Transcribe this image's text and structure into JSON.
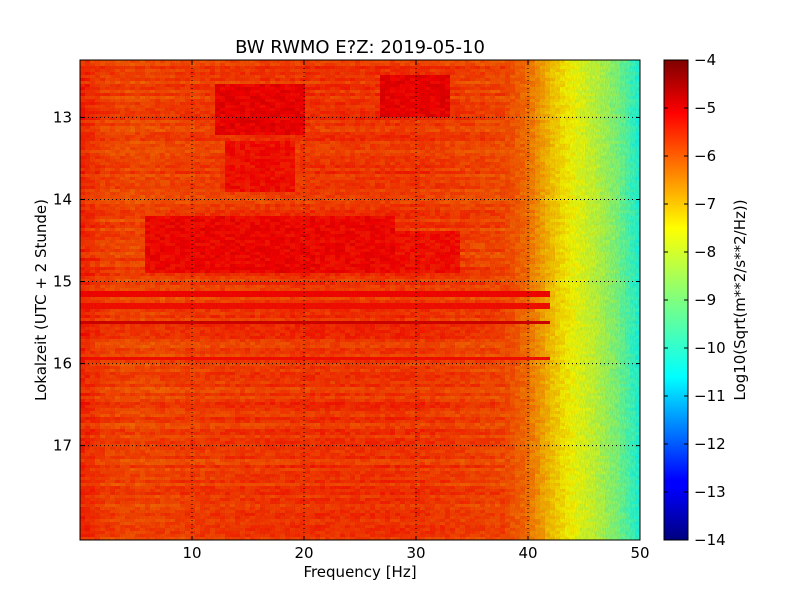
{
  "chart_data": {
    "type": "heatmap",
    "title": "BW RWMO E?Z: 2019-05-10",
    "xlabel": "Frequency [Hz]",
    "ylabel": "Lokalzeit (UTC + 2 Stunde)",
    "xlim": [
      0,
      50
    ],
    "ylim": [
      12.3,
      18.15
    ],
    "x_ticks": [
      10,
      20,
      30,
      40,
      50
    ],
    "x_tick_labels": [
      "10",
      "20",
      "30",
      "40",
      "50"
    ],
    "y_ticks": [
      13,
      14,
      15,
      16,
      17
    ],
    "y_tick_labels": [
      "13",
      "14",
      "15",
      "16",
      "17"
    ],
    "y_inverted": true,
    "grid": true,
    "colorbar": {
      "label": "Log10(Sqrt(m**2/s**2/Hz))",
      "range": [
        -14,
        -4
      ],
      "ticks": [
        -4,
        -5,
        -6,
        -7,
        -8,
        -9,
        -10,
        -11,
        -12,
        -13,
        -14
      ],
      "tick_labels": [
        "−4",
        "−5",
        "−6",
        "−7",
        "−8",
        "−9",
        "−10",
        "−11",
        "−12",
        "−13",
        "−14"
      ],
      "colormap": "jet"
    },
    "frequency_profile": {
      "frequency_hz": [
        0,
        2,
        5,
        10,
        20,
        30,
        38,
        40,
        42,
        44,
        46,
        48,
        50
      ],
      "value": [
        -5.6,
        -5.9,
        -6.0,
        -5.9,
        -5.8,
        -5.8,
        -6.0,
        -6.4,
        -7.2,
        -7.8,
        -8.3,
        -9.0,
        -10.0
      ]
    },
    "strong_bands": [
      {
        "time_start": 12.6,
        "time_end": 13.2,
        "freq_start": 12,
        "freq_end": 20,
        "value": -5.2
      },
      {
        "time_start": 12.5,
        "time_end": 13.0,
        "freq_start": 27,
        "freq_end": 33,
        "value": -5.2
      },
      {
        "time_start": 13.3,
        "time_end": 13.9,
        "freq_start": 13,
        "freq_end": 19,
        "value": -5.4
      },
      {
        "time_start": 14.2,
        "time_end": 14.9,
        "freq_start": 6,
        "freq_end": 28,
        "value": -5.3
      },
      {
        "time_start": 14.4,
        "time_end": 14.9,
        "freq_start": 28,
        "freq_end": 34,
        "value": -5.4
      }
    ],
    "horizontal_lines": [
      {
        "time": 15.5,
        "value": -4.9
      },
      {
        "time": 15.15,
        "value": -5.3
      },
      {
        "time": 15.3,
        "value": -5.4
      },
      {
        "time": 15.95,
        "value": -5.4
      }
    ]
  }
}
